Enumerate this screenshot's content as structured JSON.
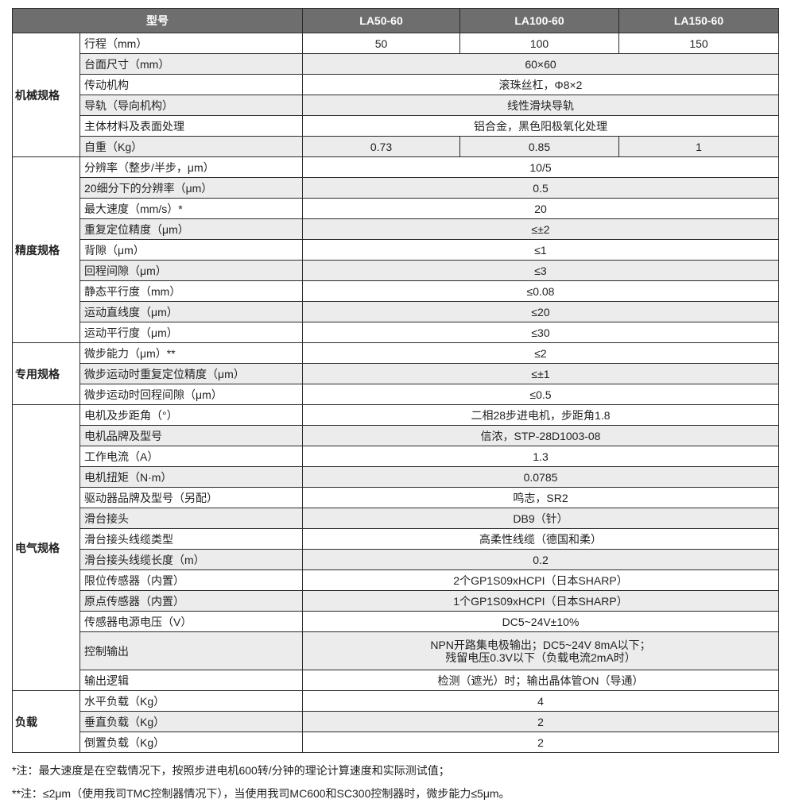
{
  "header": {
    "model_label": "型号",
    "models": [
      "LA50-60",
      "LA100-60",
      "LA150-60"
    ]
  },
  "groups": [
    {
      "name": "机械规格",
      "rows": [
        {
          "label": "行程（mm）",
          "values": [
            "50",
            "100",
            "150"
          ]
        },
        {
          "label": "台面尺寸（mm）",
          "values": [
            "60×60"
          ]
        },
        {
          "label": "传动机构",
          "values": [
            "滚珠丝杠，Φ8×2"
          ]
        },
        {
          "label": "导轨（导向机构）",
          "values": [
            "线性滑块导轨"
          ]
        },
        {
          "label": "主体材料及表面处理",
          "values": [
            "铝合金，黑色阳极氧化处理"
          ]
        },
        {
          "label": "自重（Kg）",
          "values": [
            "0.73",
            "0.85",
            "1"
          ]
        }
      ]
    },
    {
      "name": "精度规格",
      "rows": [
        {
          "label": "分辨率（整步/半步，μm）",
          "values": [
            "10/5"
          ]
        },
        {
          "label": "20细分下的分辨率（μm）",
          "values": [
            "0.5"
          ]
        },
        {
          "label": "最大速度（mm/s）*",
          "values": [
            "20"
          ]
        },
        {
          "label": "重复定位精度（μm）",
          "values": [
            "≤±2"
          ]
        },
        {
          "label": "背隙（μm）",
          "values": [
            "≤1"
          ]
        },
        {
          "label": "回程间隙（μm）",
          "values": [
            "≤3"
          ]
        },
        {
          "label": "静态平行度（mm）",
          "values": [
            "≤0.08"
          ]
        },
        {
          "label": "运动直线度（μm）",
          "values": [
            "≤20"
          ]
        },
        {
          "label": "运动平行度（μm）",
          "values": [
            "≤30"
          ]
        }
      ]
    },
    {
      "name": "专用规格",
      "rows": [
        {
          "label": "微步能力（μm）**",
          "values": [
            "≤2"
          ]
        },
        {
          "label": "微步运动时重复定位精度（μm）",
          "values": [
            "≤±1"
          ]
        },
        {
          "label": "微步运动时回程间隙（μm）",
          "values": [
            "≤0.5"
          ]
        }
      ]
    },
    {
      "name": "电气规格",
      "rows": [
        {
          "label": "电机及步距角（°）",
          "values": [
            "二相28步进电机，步距角1.8"
          ]
        },
        {
          "label": "电机品牌及型号",
          "values": [
            "信浓，STP-28D1003-08"
          ]
        },
        {
          "label": "工作电流（A）",
          "values": [
            "1.3"
          ]
        },
        {
          "label": "电机扭矩（N·m）",
          "values": [
            "0.0785"
          ]
        },
        {
          "label": "驱动器品牌及型号（另配）",
          "values": [
            "鸣志，SR2"
          ]
        },
        {
          "label": "滑台接头",
          "values": [
            "DB9（针）"
          ]
        },
        {
          "label": "滑台接头线缆类型",
          "values": [
            "高柔性线缆（德国和柔）"
          ]
        },
        {
          "label": "滑台接头线缆长度（m）",
          "values": [
            "0.2"
          ]
        },
        {
          "label": "限位传感器（内置）",
          "values": [
            "2个GP1S09xHCPI（日本SHARP）"
          ]
        },
        {
          "label": "原点传感器（内置）",
          "values": [
            "1个GP1S09xHCPI（日本SHARP）"
          ]
        },
        {
          "label": "传感器电源电压（V）",
          "values": [
            "DC5~24V±10%"
          ]
        },
        {
          "label": "控制输出",
          "values": [
            "NPN开路集电极输出；DC5~24V 8mA以下；",
            "残留电压0.3V以下（负载电流2mA时）"
          ],
          "multiline": true
        },
        {
          "label": "输出逻辑",
          "values": [
            "检测（遮光）时；输出晶体管ON（导通）"
          ]
        }
      ]
    },
    {
      "name": "负载",
      "rows": [
        {
          "label": "水平负载（Kg）",
          "values": [
            "4"
          ]
        },
        {
          "label": "垂直负载（Kg）",
          "values": [
            "2"
          ]
        },
        {
          "label": "倒置负载（Kg）",
          "values": [
            "2"
          ]
        }
      ]
    }
  ],
  "notes": [
    "*注：最大速度是在空载情况下，按照步进电机600转/分钟的理论计算速度和实际测试值；",
    "**注：≤2μm（使用我司TMC控制器情况下），当使用我司MC600和SC300控制器时，微步能力≤5μm。"
  ]
}
